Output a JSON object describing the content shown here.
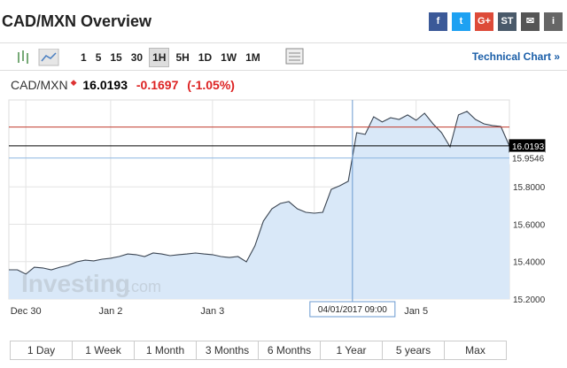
{
  "header": {
    "title": "CAD/MXN Overview",
    "share_icons": [
      "f",
      "t",
      "G+",
      "ST",
      "✉",
      "i"
    ]
  },
  "toolbar": {
    "intervals": [
      "1",
      "5",
      "15",
      "30",
      "1H",
      "5H",
      "1D",
      "1W",
      "1M"
    ],
    "active_index": 4,
    "link": "Technical Chart »"
  },
  "quote": {
    "symbol": "CAD/MXN",
    "price": "16.0193",
    "change": "-0.1697",
    "change_pct": "(-1.05%)"
  },
  "watermark": {
    "brand": "Investing",
    "suffix": ".com"
  },
  "chart_data": {
    "type": "area",
    "color": "#3b4552",
    "fill": "#d9e8f8",
    "values": [
      15.356,
      15.356,
      15.333,
      15.37,
      15.366,
      15.356,
      15.37,
      15.38,
      15.399,
      15.408,
      15.404,
      15.413,
      15.418,
      15.427,
      15.441,
      15.437,
      15.427,
      15.446,
      15.441,
      15.432,
      15.437,
      15.441,
      15.446,
      15.441,
      15.437,
      15.427,
      15.422,
      15.427,
      15.399,
      15.484,
      15.617,
      15.683,
      15.711,
      15.721,
      15.683,
      15.664,
      15.659,
      15.664,
      15.787,
      15.806,
      15.83,
      16.09,
      16.081,
      16.175,
      16.147,
      16.17,
      16.161,
      16.185,
      16.156,
      16.194,
      16.137,
      16.09,
      16.014,
      16.185,
      16.204,
      16.161,
      16.137,
      16.128,
      16.123,
      16.019
    ],
    "xlim": [
      0,
      59
    ],
    "xticks": [
      {
        "value": 2,
        "label": "Dec 30"
      },
      {
        "value": 12,
        "label": "Jan 2"
      },
      {
        "value": 24,
        "label": "Jan 3"
      },
      {
        "value": 36,
        "label": "J"
      },
      {
        "value": 48,
        "label": "Jan 5"
      }
    ],
    "ylim": [
      15.2,
      16.265
    ],
    "yticks": [
      {
        "value": 15.2,
        "label": "15.2000"
      },
      {
        "value": 15.4,
        "label": "15.4000"
      },
      {
        "value": 15.6,
        "label": "15.6000"
      },
      {
        "value": 15.8,
        "label": "15.8000"
      }
    ],
    "grid": true,
    "reference_lines": [
      {
        "value": 16.12,
        "color": "#c0392b"
      },
      {
        "value": 16.0193,
        "color": "#000000",
        "labelled": true
      },
      {
        "value": 15.9546,
        "color": "#8db6e0",
        "labelled": true
      }
    ],
    "crosshair": {
      "x": 40.5,
      "label": "04/01/2017 09:00"
    }
  },
  "ranges": [
    "1 Day",
    "1 Week",
    "1 Month",
    "3 Months",
    "6 Months",
    "1 Year",
    "5 years",
    "Max"
  ]
}
